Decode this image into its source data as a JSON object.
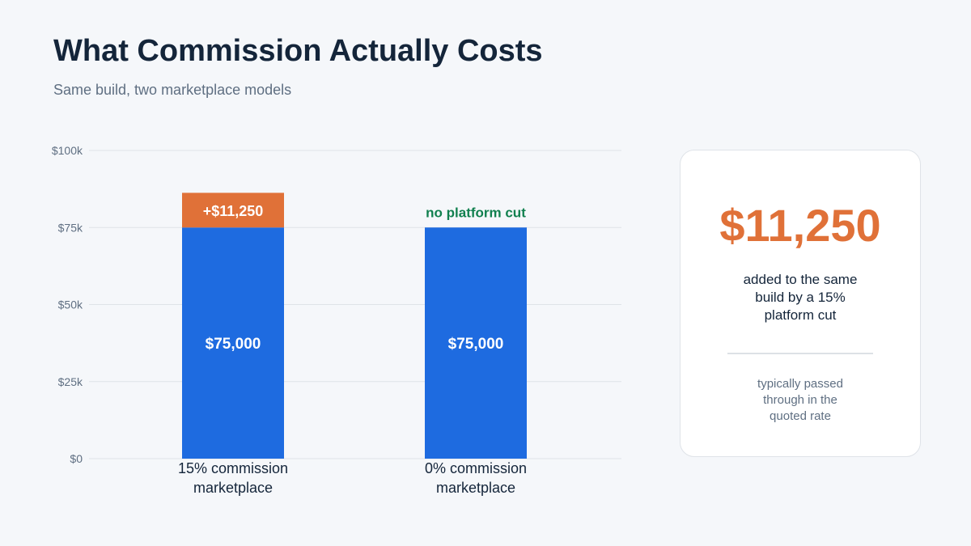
{
  "title": "What Commission Actually Costs",
  "subtitle": "Same build, two marketplace models",
  "chart_data": {
    "type": "bar",
    "stacked": true,
    "categories": [
      "15% commission marketplace",
      "0% commission marketplace"
    ],
    "category_lines": [
      [
        "15% commission",
        "marketplace"
      ],
      [
        "0% commission",
        "marketplace"
      ]
    ],
    "series": [
      {
        "name": "",
        "values": [
          75000,
          75000
        ],
        "color": "#1e6be0",
        "labels": [
          "$75,000",
          "$75,000"
        ]
      },
      {
        "name": "",
        "values": [
          11250,
          0
        ],
        "color": "#e07138",
        "labels": [
          "+$11,250",
          ""
        ]
      }
    ],
    "annotations": [
      {
        "category_index": 1,
        "text": "no platform cut",
        "color": "#11804f"
      }
    ],
    "ylim": [
      0,
      100000
    ],
    "yticks": [
      {
        "value": 0,
        "label": "$0"
      },
      {
        "value": 25000,
        "label": "$25k"
      },
      {
        "value": 50000,
        "label": "$50k"
      },
      {
        "value": 75000,
        "label": "$75k"
      },
      {
        "value": 100000,
        "label": "$100k"
      }
    ],
    "grid": true,
    "xlabel": "",
    "ylabel": ""
  },
  "card": {
    "amount": "$11,250",
    "description": "added to the same build by a 15% platform cut",
    "note": "typically passed through in the quoted rate"
  },
  "colors": {
    "background": "#f5f7fa",
    "primary_bar": "#1e6be0",
    "commission_bar": "#e07138",
    "no_cut_text": "#11804f",
    "title_text": "#14253a",
    "muted_text": "#5f6f82"
  }
}
